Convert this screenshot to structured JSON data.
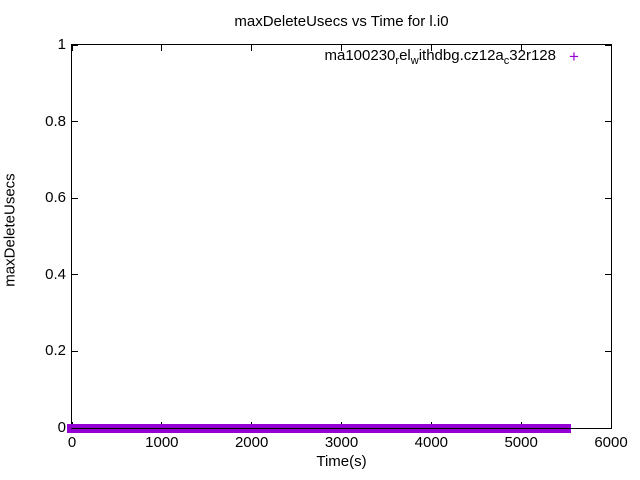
{
  "chart_data": {
    "type": "scatter",
    "title": "maxDeleteUsecs vs Time for l.i0",
    "xlabel": "Time(s)",
    "ylabel": "maxDeleteUsecs",
    "xlim": [
      0,
      6000
    ],
    "ylim": [
      0,
      1
    ],
    "xtick_values": [
      0,
      1000,
      2000,
      3000,
      4000,
      5000,
      6000
    ],
    "xtick_labels": [
      "0",
      "1000",
      "2000",
      "3000",
      "4000",
      "5000",
      "6000"
    ],
    "ytick_values": [
      0,
      0.2,
      0.4,
      0.6,
      0.8,
      1
    ],
    "ytick_labels": [
      "0",
      "0.2",
      "0.4",
      "0.6",
      "0.8",
      "1"
    ],
    "grid": false,
    "ticks_mirrored": true,
    "legend_position": "inside-top-right",
    "series": [
      {
        "name": "ma100230_rel_withdbg.cz12a_c32r128",
        "name_display_segments": [
          {
            "text": "ma100230",
            "subscript": false
          },
          {
            "text": "r",
            "subscript": true
          },
          {
            "text": "el",
            "subscript": false
          },
          {
            "text": "w",
            "subscript": true
          },
          {
            "text": "ithdbg.cz12a",
            "subscript": false
          },
          {
            "text": "c",
            "subscript": true
          },
          {
            "text": "32r128",
            "subscript": false
          }
        ],
        "marker": "+",
        "color": "#9400d3",
        "points": {
          "y": 0,
          "x_start": 0,
          "x_end": 5500,
          "description": "dense run of + markers all at y=0 from x=0 to x≈5500, forming a solid band along the x-axis"
        }
      }
    ]
  }
}
